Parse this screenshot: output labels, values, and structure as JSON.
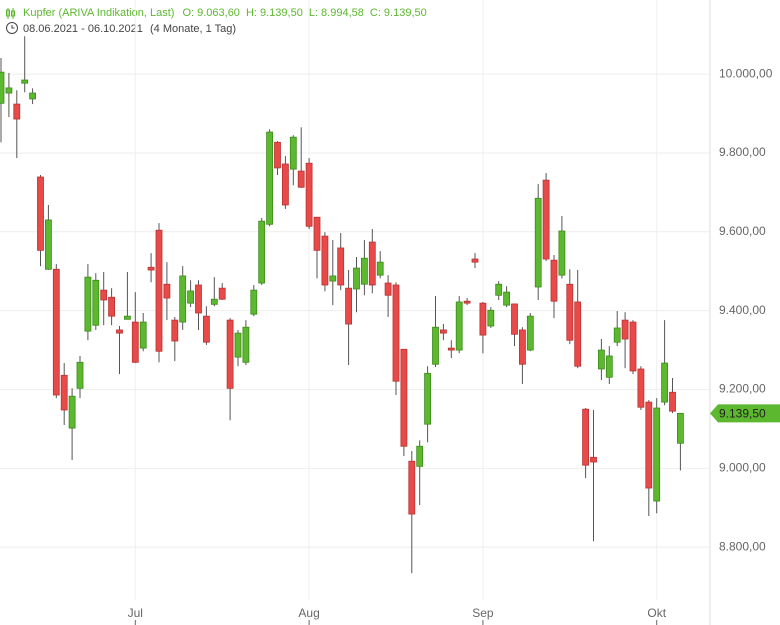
{
  "chart_data": {
    "type": "candlestick",
    "title": "Kupfer (ARIVA Indikation, Last)",
    "ohlc_summary": [
      "O: 9.063,60",
      "H: 9.139,50",
      "L: 8.994,58",
      "C: 9.139,50"
    ],
    "date_range": "08.06.2021 - 06.10.2021",
    "period": "(4 Monate, 1 Tag)",
    "up_color": "#5cb82e",
    "down_color": "#e84a4a",
    "categories": [
      null,
      null,
      null,
      null,
      null,
      null,
      null,
      null,
      null,
      null,
      null,
      null,
      null,
      null,
      null,
      null,
      null,
      "Jul",
      null,
      null,
      null,
      null,
      null,
      null,
      null,
      null,
      null,
      null,
      null,
      null,
      null,
      null,
      null,
      null,
      null,
      null,
      null,
      null,
      null,
      "Aug",
      null,
      null,
      null,
      null,
      null,
      null,
      null,
      null,
      null,
      null,
      null,
      null,
      null,
      null,
      null,
      null,
      null,
      null,
      null,
      null,
      null,
      "Sep",
      null,
      null,
      null,
      null,
      null,
      null,
      null,
      null,
      null,
      null,
      null,
      null,
      null,
      null,
      null,
      null,
      null,
      null,
      null,
      null,
      null,
      "Okt",
      null,
      null,
      null
    ],
    "open": [
      9926,
      9952,
      9924,
      9977,
      9937,
      9739,
      9505,
      9505,
      9236,
      9102,
      9203,
      9348,
      9363,
      9452,
      9434,
      9351,
      9378,
      9371,
      9305,
      9510,
      9604,
      9467,
      9376,
      9371,
      9419,
      9465,
      9386,
      9416,
      9457,
      9376,
      9282,
      9269,
      9391,
      9470,
      9619,
      9827,
      9772,
      9759,
      9754,
      9774,
      9637,
      9589,
      9475,
      9559,
      9457,
      9455,
      9467,
      9574,
      9490,
      9470,
      9465,
      9302,
      9018,
      9005,
      9112,
      9264,
      9351,
      9305,
      9300,
      9424,
      9531,
      9419,
      9361,
      9439,
      9414,
      9417,
      9351,
      9300,
      9460,
      9731,
      9528,
      9490,
      9467,
      9422,
      9150,
      9028,
      9252,
      9231,
      9320,
      9376,
      9371,
      9252,
      9168,
      8917,
      9168,
      9193,
      9063.6
    ],
    "high": [
      10041,
      10003,
      9959,
      10096,
      9964,
      9744,
      9668,
      9518,
      9267,
      9203,
      9285,
      9518,
      9495,
      9498,
      9457,
      9361,
      9498,
      9447,
      9394,
      9546,
      9622,
      9523,
      9384,
      9513,
      9477,
      9477,
      9411,
      9485,
      9470,
      9381,
      9351,
      9376,
      9465,
      9635,
      9860,
      9830,
      9792,
      9845,
      9865,
      9787,
      9637,
      9599,
      9579,
      9597,
      9503,
      9536,
      9579,
      9607,
      9551,
      9490,
      9472,
      9302,
      9044,
      9071,
      9259,
      9437,
      9366,
      9325,
      9437,
      9432,
      9546,
      9422,
      9409,
      9475,
      9462,
      9417,
      9358,
      9394,
      9721,
      9749,
      9541,
      9640,
      9505,
      9503,
      9153,
      9148,
      9328,
      9310,
      9399,
      9396,
      9376,
      9259,
      9173,
      9178,
      9376,
      9229,
      9139.5
    ],
    "low": [
      9827,
      9891,
      9787,
      9954,
      9924,
      9513,
      9503,
      9178,
      9110,
      9021,
      9178,
      9325,
      9351,
      9363,
      9363,
      9239,
      9378,
      9267,
      9297,
      9472,
      9269,
      9376,
      9272,
      9351,
      9409,
      9351,
      9313,
      9411,
      9427,
      9122,
      9259,
      9262,
      9386,
      9465,
      9614,
      9744,
      9658,
      9718,
      9711,
      9607,
      9482,
      9449,
      9414,
      9452,
      9262,
      9396,
      9439,
      9444,
      9482,
      9384,
      9186,
      9031,
      8734,
      8907,
      9066,
      9257,
      9325,
      9280,
      9292,
      9414,
      9508,
      9292,
      9356,
      9427,
      9409,
      9310,
      9214,
      9297,
      9427,
      9526,
      9381,
      9482,
      9315,
      9254,
      8975,
      8815,
      9224,
      9214,
      9310,
      9254,
      9239,
      9148,
      8879,
      8886,
      9160,
      9140,
      8994.58
    ],
    "close": [
      10005,
      9965,
      9886,
      9985,
      9952,
      9553,
      9630,
      9186,
      9148,
      9183,
      9269,
      9485,
      9477,
      9427,
      9386,
      9343,
      9386,
      9269,
      9371,
      9503,
      9297,
      9432,
      9323,
      9488,
      9450,
      9394,
      9320,
      9429,
      9429,
      9203,
      9343,
      9358,
      9452,
      9627,
      9853,
      9762,
      9668,
      9840,
      9713,
      9614,
      9553,
      9465,
      9488,
      9465,
      9366,
      9508,
      9533,
      9465,
      9523,
      9439,
      9221,
      9056,
      8884,
      9056,
      9241,
      9358,
      9343,
      9300,
      9422,
      9419,
      9523,
      9338,
      9401,
      9467,
      9447,
      9340,
      9264,
      9386,
      9685,
      9531,
      9424,
      9602,
      9325,
      9259,
      9008,
      9016,
      9300,
      9285,
      9356,
      9328,
      9247,
      9155,
      8950,
      9153,
      9267,
      9145,
      9139.5
    ],
    "last_price": {
      "value": 9139.5,
      "label": "9.139,50"
    },
    "ylim": [
      8666,
      10188
    ],
    "yticks": [
      {
        "value": 8800,
        "label": "8.800,00"
      },
      {
        "value": 9000,
        "label": "9.000,00"
      },
      {
        "value": 9200,
        "label": "9.200,00"
      },
      {
        "value": 9400,
        "label": "9.400,00"
      },
      {
        "value": 9600,
        "label": "9.600,00"
      },
      {
        "value": 9800,
        "label": "9.800,00"
      },
      {
        "value": 10000,
        "label": "10.000,00"
      }
    ],
    "grid": true
  }
}
